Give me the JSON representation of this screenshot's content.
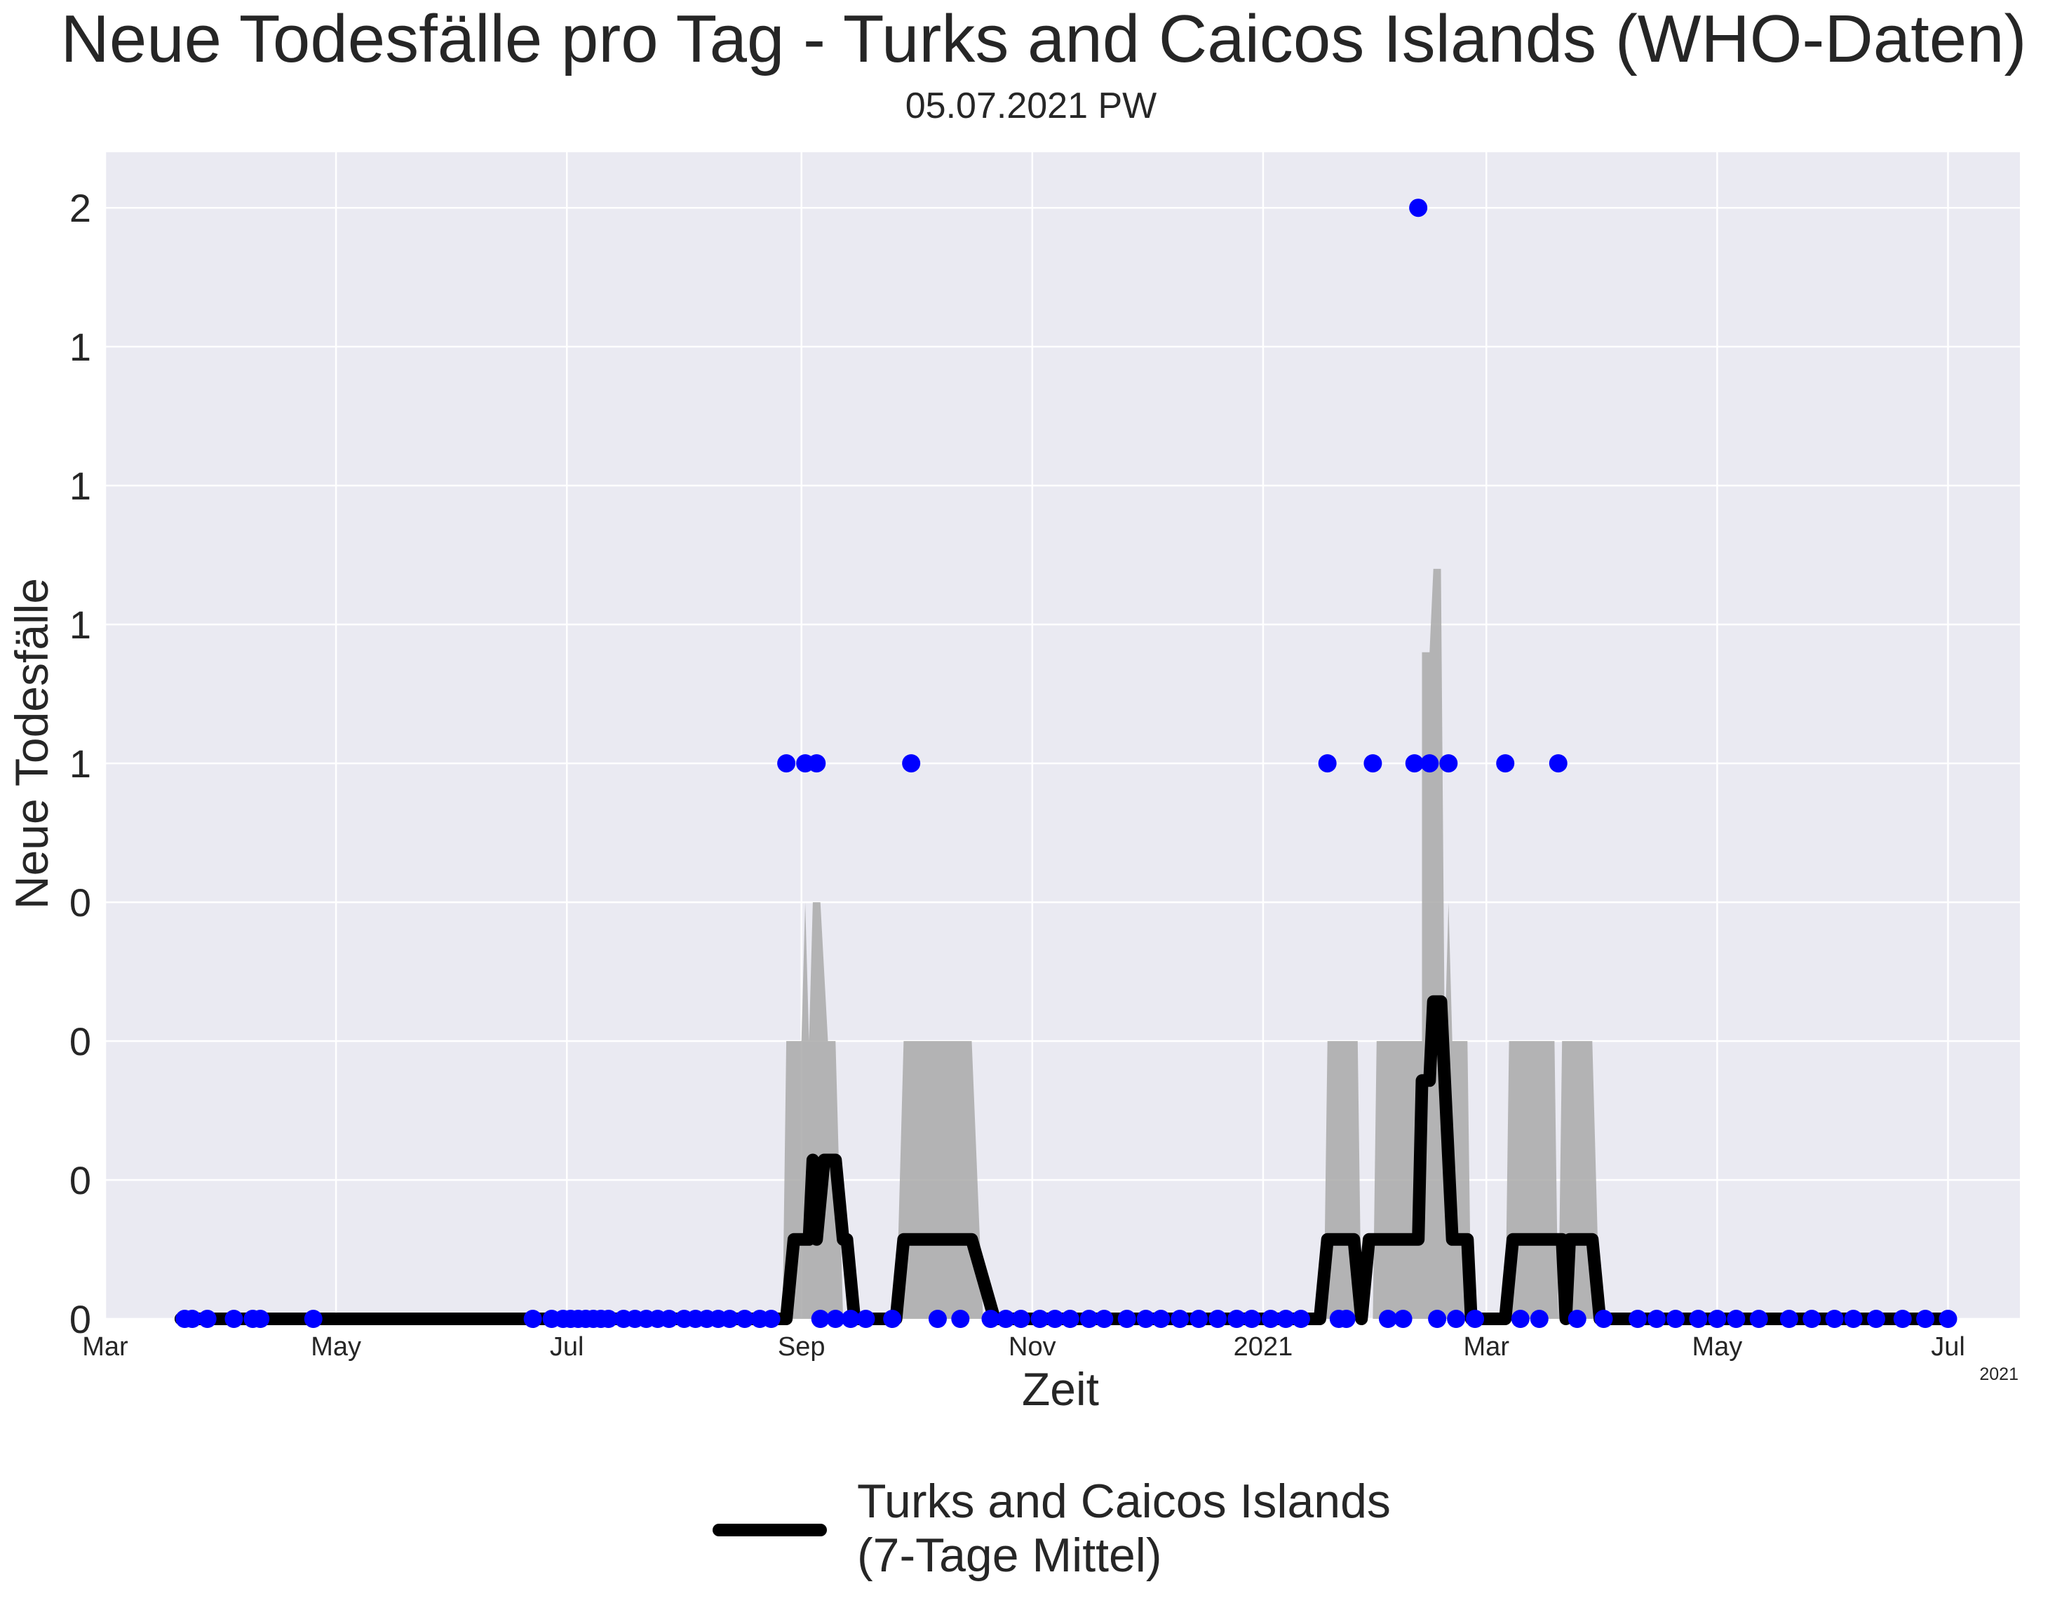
{
  "chart_data": {
    "type": "line",
    "title": "Neue Todesfälle pro Tag - Turks and Caicos Islands (WHO-Daten)",
    "subtitle": "05.07.2021 PW",
    "xlabel": "Zeit",
    "ylabel": "Neue Todesfälle",
    "x_offset_label": "2021",
    "xlim": [
      "2020-03-01",
      "2021-07-20"
    ],
    "ylim": [
      0,
      2.1
    ],
    "grid": true,
    "x_ticks": [
      {
        "date": "2020-03-01",
        "label": "Mar"
      },
      {
        "date": "2020-05-01",
        "label": "May"
      },
      {
        "date": "2020-07-01",
        "label": "Jul"
      },
      {
        "date": "2020-09-01",
        "label": "Sep"
      },
      {
        "date": "2020-11-01",
        "label": "Nov"
      },
      {
        "date": "2021-01-01",
        "label": "2021"
      },
      {
        "date": "2021-03-01",
        "label": "Mar"
      },
      {
        "date": "2021-05-01",
        "label": "May"
      },
      {
        "date": "2021-07-01",
        "label": "Jul"
      }
    ],
    "y_ticks": [
      {
        "value": 0.0,
        "label": "0"
      },
      {
        "value": 0.25,
        "label": "0"
      },
      {
        "value": 0.5,
        "label": "0"
      },
      {
        "value": 0.75,
        "label": "0"
      },
      {
        "value": 1.0,
        "label": "1"
      },
      {
        "value": 1.25,
        "label": "1"
      },
      {
        "value": 1.5,
        "label": "1"
      },
      {
        "value": 1.75,
        "label": "1"
      },
      {
        "value": 2.0,
        "label": "2"
      }
    ],
    "legend": {
      "placement": "bottom-center",
      "label_line1": "Turks and Caicos Islands",
      "label_line2": "(7-Tage Mittel)"
    },
    "colors": {
      "plot_bg": "#eaeaf2",
      "grid": "#ffffff",
      "line": "#000000",
      "points": "#0000ff",
      "band": "#a9a9a9",
      "text": "#262626"
    },
    "series": [
      {
        "name": "Turks and Caicos Islands (7-Tage Mittel)",
        "kind": "line",
        "points": [
          [
            "2020-03-21",
            0
          ],
          [
            "2020-08-28",
            0
          ],
          [
            "2020-08-30",
            0.143
          ],
          [
            "2020-09-03",
            0.143
          ],
          [
            "2020-09-04",
            0.286
          ],
          [
            "2020-09-05",
            0.143
          ],
          [
            "2020-09-07",
            0.286
          ],
          [
            "2020-09-10",
            0.286
          ],
          [
            "2020-09-12",
            0.143
          ],
          [
            "2020-09-13",
            0.143
          ],
          [
            "2020-09-15",
            0
          ],
          [
            "2020-09-26",
            0
          ],
          [
            "2020-09-28",
            0.143
          ],
          [
            "2020-10-16",
            0.143
          ],
          [
            "2020-10-22",
            0
          ],
          [
            "2021-01-16",
            0
          ],
          [
            "2021-01-18",
            0.143
          ],
          [
            "2021-01-25",
            0.143
          ],
          [
            "2021-01-27",
            0
          ],
          [
            "2021-01-29",
            0.143
          ],
          [
            "2021-02-11",
            0.143
          ],
          [
            "2021-02-12",
            0.429
          ],
          [
            "2021-02-14",
            0.429
          ],
          [
            "2021-02-15",
            0.571
          ],
          [
            "2021-02-17",
            0.571
          ],
          [
            "2021-02-19",
            0.286
          ],
          [
            "2021-02-20",
            0.143
          ],
          [
            "2021-02-24",
            0.143
          ],
          [
            "2021-02-25",
            0
          ],
          [
            "2021-03-06",
            0
          ],
          [
            "2021-03-08",
            0.143
          ],
          [
            "2021-03-21",
            0.143
          ],
          [
            "2021-03-22",
            0
          ],
          [
            "2021-03-23",
            0.143
          ],
          [
            "2021-03-29",
            0.143
          ],
          [
            "2021-03-31",
            0
          ],
          [
            "2021-07-01",
            0
          ]
        ]
      },
      {
        "name": "",
        "kind": "band",
        "points": [
          [
            "2020-08-27",
            0
          ],
          [
            "2020-08-28",
            0.5
          ],
          [
            "2020-09-01",
            0.5
          ],
          [
            "2020-09-02",
            0.75
          ],
          [
            "2020-09-03",
            0.5
          ],
          [
            "2020-09-04",
            0.75
          ],
          [
            "2020-09-06",
            0.75
          ],
          [
            "2020-09-08",
            0.5
          ],
          [
            "2020-09-10",
            0.5
          ],
          [
            "2020-09-12",
            0
          ],
          [
            "2020-09-26",
            0
          ],
          [
            "2020-09-28",
            0.5
          ],
          [
            "2020-10-16",
            0.5
          ],
          [
            "2020-10-19",
            0
          ],
          [
            "2021-01-17",
            0
          ],
          [
            "2021-01-18",
            0.5
          ],
          [
            "2021-01-26",
            0.5
          ],
          [
            "2021-01-27",
            0
          ],
          [
            "2021-01-30",
            0
          ],
          [
            "2021-01-31",
            0.5
          ],
          [
            "2021-02-12",
            0.5
          ],
          [
            "2021-02-12",
            1.2
          ],
          [
            "2021-02-14",
            1.2
          ],
          [
            "2021-02-15",
            1.35
          ],
          [
            "2021-02-17",
            1.35
          ],
          [
            "2021-02-18",
            0.5
          ],
          [
            "2021-02-19",
            0.75
          ],
          [
            "2021-02-20",
            0.5
          ],
          [
            "2021-02-24",
            0.5
          ],
          [
            "2021-02-25",
            0
          ],
          [
            "2021-03-06",
            0
          ],
          [
            "2021-03-07",
            0.5
          ],
          [
            "2021-03-19",
            0.5
          ],
          [
            "2021-03-20",
            0
          ],
          [
            "2021-03-21",
            0.5
          ],
          [
            "2021-03-29",
            0.5
          ],
          [
            "2021-03-31",
            0
          ]
        ]
      },
      {
        "name": "",
        "kind": "scatter",
        "points": [
          [
            "2020-03-22",
            0
          ],
          [
            "2020-03-24",
            0
          ],
          [
            "2020-03-28",
            0
          ],
          [
            "2020-04-04",
            0
          ],
          [
            "2020-04-09",
            0
          ],
          [
            "2020-04-11",
            0
          ],
          [
            "2020-04-25",
            0
          ],
          [
            "2020-06-22",
            0
          ],
          [
            "2020-06-27",
            0
          ],
          [
            "2020-06-30",
            0
          ],
          [
            "2020-07-02",
            0
          ],
          [
            "2020-07-04",
            0
          ],
          [
            "2020-07-06",
            0
          ],
          [
            "2020-07-08",
            0
          ],
          [
            "2020-07-10",
            0
          ],
          [
            "2020-07-12",
            0
          ],
          [
            "2020-07-16",
            0
          ],
          [
            "2020-07-19",
            0
          ],
          [
            "2020-07-22",
            0
          ],
          [
            "2020-07-25",
            0
          ],
          [
            "2020-07-28",
            0
          ],
          [
            "2020-08-01",
            0
          ],
          [
            "2020-08-04",
            0
          ],
          [
            "2020-08-07",
            0
          ],
          [
            "2020-08-10",
            0
          ],
          [
            "2020-08-13",
            0
          ],
          [
            "2020-08-17",
            0
          ],
          [
            "2020-08-21",
            0
          ],
          [
            "2020-08-24",
            0
          ],
          [
            "2020-08-28",
            1
          ],
          [
            "2020-09-02",
            1
          ],
          [
            "2020-09-05",
            1
          ],
          [
            "2020-09-30",
            1
          ],
          [
            "2020-09-06",
            0
          ],
          [
            "2020-09-10",
            0
          ],
          [
            "2020-09-14",
            0
          ],
          [
            "2020-09-18",
            0
          ],
          [
            "2020-09-25",
            0
          ],
          [
            "2020-10-07",
            0
          ],
          [
            "2020-10-13",
            0
          ],
          [
            "2020-10-21",
            0
          ],
          [
            "2020-10-25",
            0
          ],
          [
            "2020-10-29",
            0
          ],
          [
            "2020-11-03",
            0
          ],
          [
            "2020-11-07",
            0
          ],
          [
            "2020-11-11",
            0
          ],
          [
            "2020-11-16",
            0
          ],
          [
            "2020-11-20",
            0
          ],
          [
            "2020-11-26",
            0
          ],
          [
            "2020-12-01",
            0
          ],
          [
            "2020-12-05",
            0
          ],
          [
            "2020-12-10",
            0
          ],
          [
            "2020-12-15",
            0
          ],
          [
            "2020-12-20",
            0
          ],
          [
            "2020-12-25",
            0
          ],
          [
            "2020-12-29",
            0
          ],
          [
            "2021-01-03",
            0
          ],
          [
            "2021-01-07",
            0
          ],
          [
            "2021-01-11",
            0
          ],
          [
            "2021-01-18",
            1
          ],
          [
            "2021-01-21",
            0
          ],
          [
            "2021-01-23",
            0
          ],
          [
            "2021-01-30",
            1
          ],
          [
            "2021-02-03",
            0
          ],
          [
            "2021-02-07",
            0
          ],
          [
            "2021-02-10",
            1
          ],
          [
            "2021-02-11",
            2
          ],
          [
            "2021-02-14",
            1
          ],
          [
            "2021-02-16",
            0
          ],
          [
            "2021-02-19",
            1
          ],
          [
            "2021-02-21",
            0
          ],
          [
            "2021-02-26",
            0
          ],
          [
            "2021-03-06",
            1
          ],
          [
            "2021-03-10",
            0
          ],
          [
            "2021-03-15",
            0
          ],
          [
            "2021-03-20",
            1
          ],
          [
            "2021-03-25",
            0
          ],
          [
            "2021-04-01",
            0
          ],
          [
            "2021-04-10",
            0
          ],
          [
            "2021-04-15",
            0
          ],
          [
            "2021-04-20",
            0
          ],
          [
            "2021-04-26",
            0
          ],
          [
            "2021-05-01",
            0
          ],
          [
            "2021-05-06",
            0
          ],
          [
            "2021-05-12",
            0
          ],
          [
            "2021-05-20",
            0
          ],
          [
            "2021-05-26",
            0
          ],
          [
            "2021-06-01",
            0
          ],
          [
            "2021-06-06",
            0
          ],
          [
            "2021-06-12",
            0
          ],
          [
            "2021-06-19",
            0
          ],
          [
            "2021-06-25",
            0
          ],
          [
            "2021-07-01",
            0
          ]
        ]
      }
    ]
  }
}
